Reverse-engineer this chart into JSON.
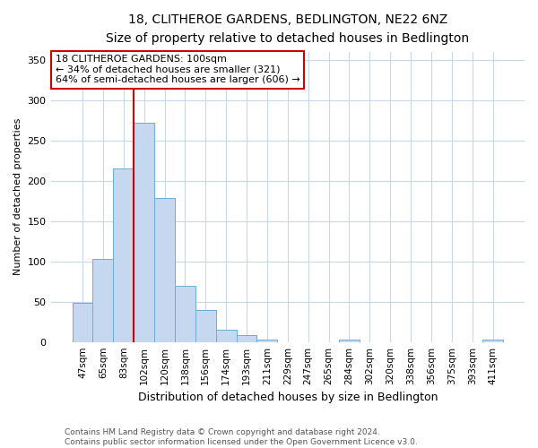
{
  "title": "18, CLITHEROE GARDENS, BEDLINGTON, NE22 6NZ",
  "subtitle": "Size of property relative to detached houses in Bedlington",
  "xlabel": "Distribution of detached houses by size in Bedlington",
  "ylabel": "Number of detached properties",
  "bar_labels": [
    "47sqm",
    "65sqm",
    "83sqm",
    "102sqm",
    "120sqm",
    "138sqm",
    "156sqm",
    "174sqm",
    "193sqm",
    "211sqm",
    "229sqm",
    "247sqm",
    "265sqm",
    "284sqm",
    "302sqm",
    "320sqm",
    "338sqm",
    "356sqm",
    "375sqm",
    "393sqm",
    "411sqm"
  ],
  "bar_values": [
    48,
    103,
    215,
    272,
    179,
    70,
    40,
    15,
    8,
    3,
    0,
    0,
    0,
    3,
    0,
    0,
    0,
    0,
    0,
    0,
    3
  ],
  "bar_color": "#c5d8ef",
  "bar_edge_color": "#6baed6",
  "vline_color": "#cc0000",
  "annotation_title": "18 CLITHEROE GARDENS: 100sqm",
  "annotation_line1": "← 34% of detached houses are smaller (321)",
  "annotation_line2": "64% of semi-detached houses are larger (606) →",
  "annotation_box_color": "#cc0000",
  "ylim": [
    0,
    360
  ],
  "yticks": [
    0,
    50,
    100,
    150,
    200,
    250,
    300,
    350
  ],
  "footer1": "Contains HM Land Registry data © Crown copyright and database right 2024.",
  "footer2": "Contains public sector information licensed under the Open Government Licence v3.0.",
  "bg_color": "#ffffff",
  "grid_color": "#c8d8e8",
  "title_fontsize": 10,
  "subtitle_fontsize": 9,
  "ylabel_fontsize": 8,
  "xlabel_fontsize": 9,
  "tick_fontsize": 7.5,
  "ytick_fontsize": 8,
  "ann_fontsize": 8,
  "footer_fontsize": 6.5
}
